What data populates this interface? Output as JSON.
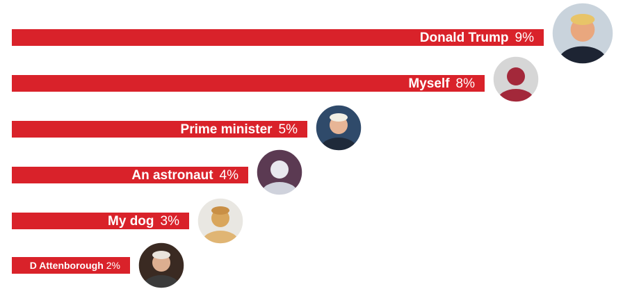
{
  "chart_data": {
    "type": "bar",
    "categories": [
      "Donald Trump",
      "Myself",
      "Prime minister",
      "An astronaut",
      "My dog",
      "D Attenborough"
    ],
    "values": [
      9,
      8,
      5,
      4,
      3,
      2
    ],
    "value_labels": [
      "9%",
      "8%",
      "5%",
      "4%",
      "3%",
      "2%"
    ],
    "color": "#d9222a"
  }
}
